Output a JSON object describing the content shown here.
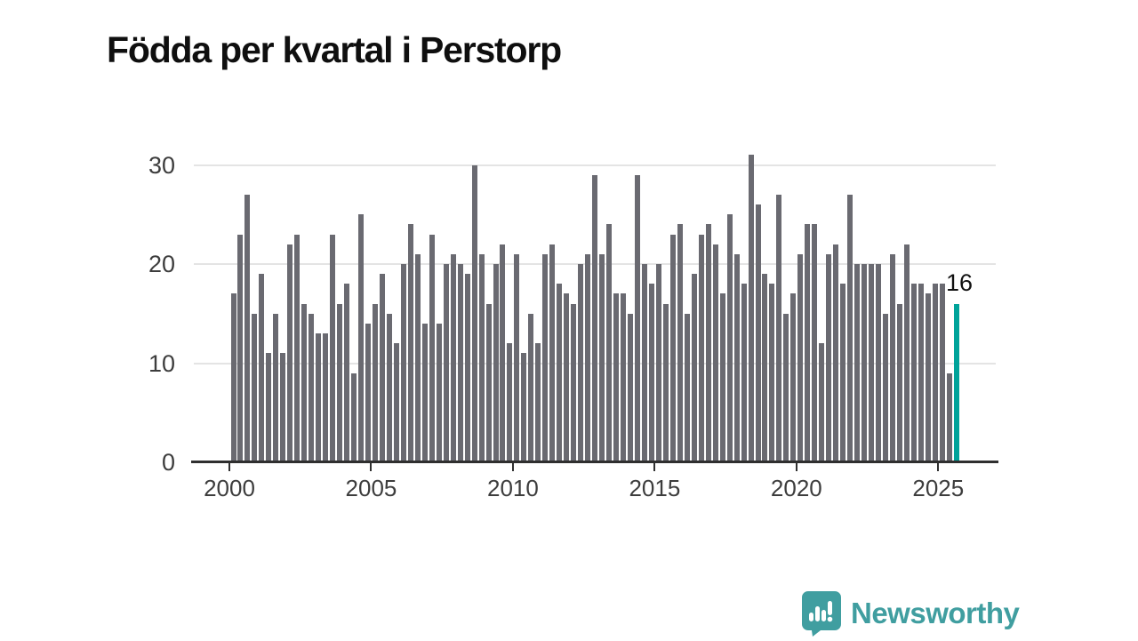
{
  "title": "Födda per kvartal i Perstorp",
  "annotation": {
    "latest_value_label": "16"
  },
  "branding": {
    "name": "Newsworthy",
    "logo_color": "#409ea0",
    "logo_icon": "speech-bubble-mini-bar-chart"
  },
  "chart_data": {
    "type": "bar",
    "title": "Födda per kvartal i Perstorp",
    "start_year": 2000,
    "start_quarter": 1,
    "period": "quarterly",
    "values": [
      17,
      23,
      27,
      15,
      19,
      11,
      15,
      11,
      22,
      23,
      16,
      15,
      13,
      13,
      23,
      16,
      18,
      9,
      25,
      14,
      16,
      19,
      15,
      12,
      20,
      24,
      21,
      14,
      23,
      14,
      20,
      21,
      20,
      19,
      30,
      21,
      16,
      20,
      22,
      12,
      21,
      11,
      15,
      12,
      21,
      22,
      18,
      17,
      16,
      20,
      21,
      29,
      21,
      24,
      17,
      17,
      15,
      29,
      20,
      18,
      20,
      16,
      23,
      24,
      15,
      19,
      23,
      24,
      22,
      17,
      25,
      21,
      18,
      31,
      26,
      19,
      18,
      27,
      15,
      17,
      21,
      24,
      24,
      12,
      21,
      22,
      18,
      27,
      20,
      20,
      20,
      20,
      15,
      21,
      16,
      22,
      18,
      18,
      17,
      18,
      18,
      9,
      16
    ],
    "highlight_last_value": 16,
    "bar_color": "#6a6a71",
    "highlight_color": "#00a39a",
    "yticks": [
      0,
      10,
      20,
      30
    ],
    "xticks": [
      2000,
      2005,
      2010,
      2015,
      2020,
      2025
    ],
    "ylim": [
      0,
      31
    ],
    "grid": true,
    "legend": "none"
  }
}
